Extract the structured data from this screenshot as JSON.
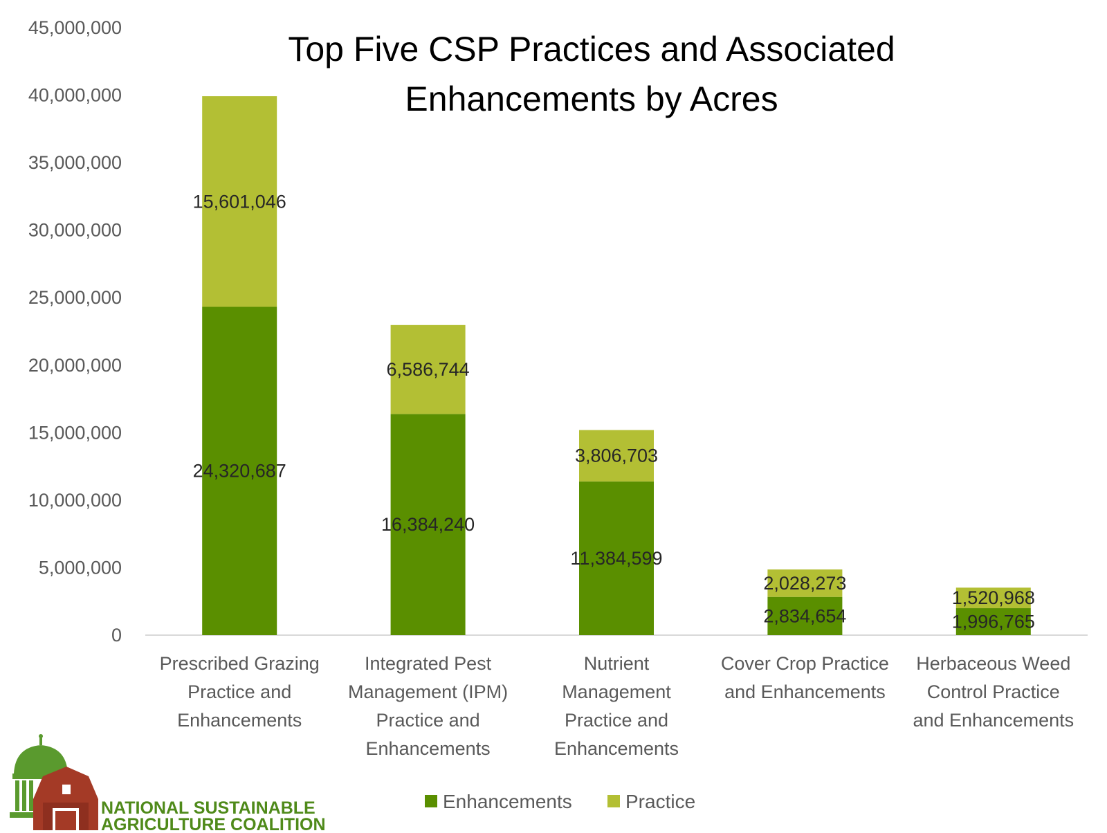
{
  "chart_data": {
    "type": "bar",
    "stacked": true,
    "title": "Top Five CSP Practices and Associated Enhancements by Acres",
    "title_lines": [
      "Top Five CSP Practices and Associated",
      "Enhancements by Acres"
    ],
    "categories": [
      "Prescribed Grazing Practice and Enhancements",
      "Integrated Pest Management (IPM) Practice and Enhancements",
      "Nutrient Management Practice and Enhancements",
      "Cover Crop Practice and Enhancements",
      "Herbaceous Weed Control Practice and Enhancements"
    ],
    "category_lines": [
      [
        "Prescribed Grazing",
        "Practice and",
        "Enhancements"
      ],
      [
        "Integrated Pest",
        "Management (IPM)",
        "Practice and",
        "Enhancements"
      ],
      [
        "Nutrient",
        "Management",
        "Practice and",
        "Enhancements"
      ],
      [
        "Cover Crop Practice",
        "and Enhancements"
      ],
      [
        "Herbaceous Weed",
        "Control Practice",
        "and Enhancements"
      ]
    ],
    "series": [
      {
        "name": "Enhancements",
        "color": "#5a8f00",
        "values": [
          24320687,
          16384240,
          11384599,
          2834654,
          1996765
        ],
        "labels": [
          "24,320,687",
          "16,384,240",
          "11,384,599",
          "2,834,654",
          "1,996,765"
        ]
      },
      {
        "name": "Practice",
        "color": "#b3bf34",
        "values": [
          15601046,
          6586744,
          3806703,
          2028273,
          1520968
        ],
        "labels": [
          "15,601,046",
          "6,586,744",
          "3,806,703",
          "2,028,273",
          "1,520,968"
        ]
      }
    ],
    "ylim": [
      0,
      45000000
    ],
    "yticks": [
      0,
      5000000,
      10000000,
      15000000,
      20000000,
      25000000,
      30000000,
      35000000,
      40000000,
      45000000
    ],
    "ytick_labels": [
      "0",
      "5,000,000",
      "10,000,000",
      "15,000,000",
      "20,000,000",
      "25,000,000",
      "30,000,000",
      "35,000,000",
      "40,000,000",
      "45,000,000"
    ],
    "xlabel": "",
    "ylabel": "",
    "grid": false,
    "legend": "bottom"
  },
  "logo": {
    "line1": "NATIONAL SUSTAINABLE",
    "line2": "AGRICULTURE COALITION",
    "colors": {
      "dome": "#5a9a2e",
      "barn": "#a43a26",
      "text": "#4f8a1a"
    }
  }
}
